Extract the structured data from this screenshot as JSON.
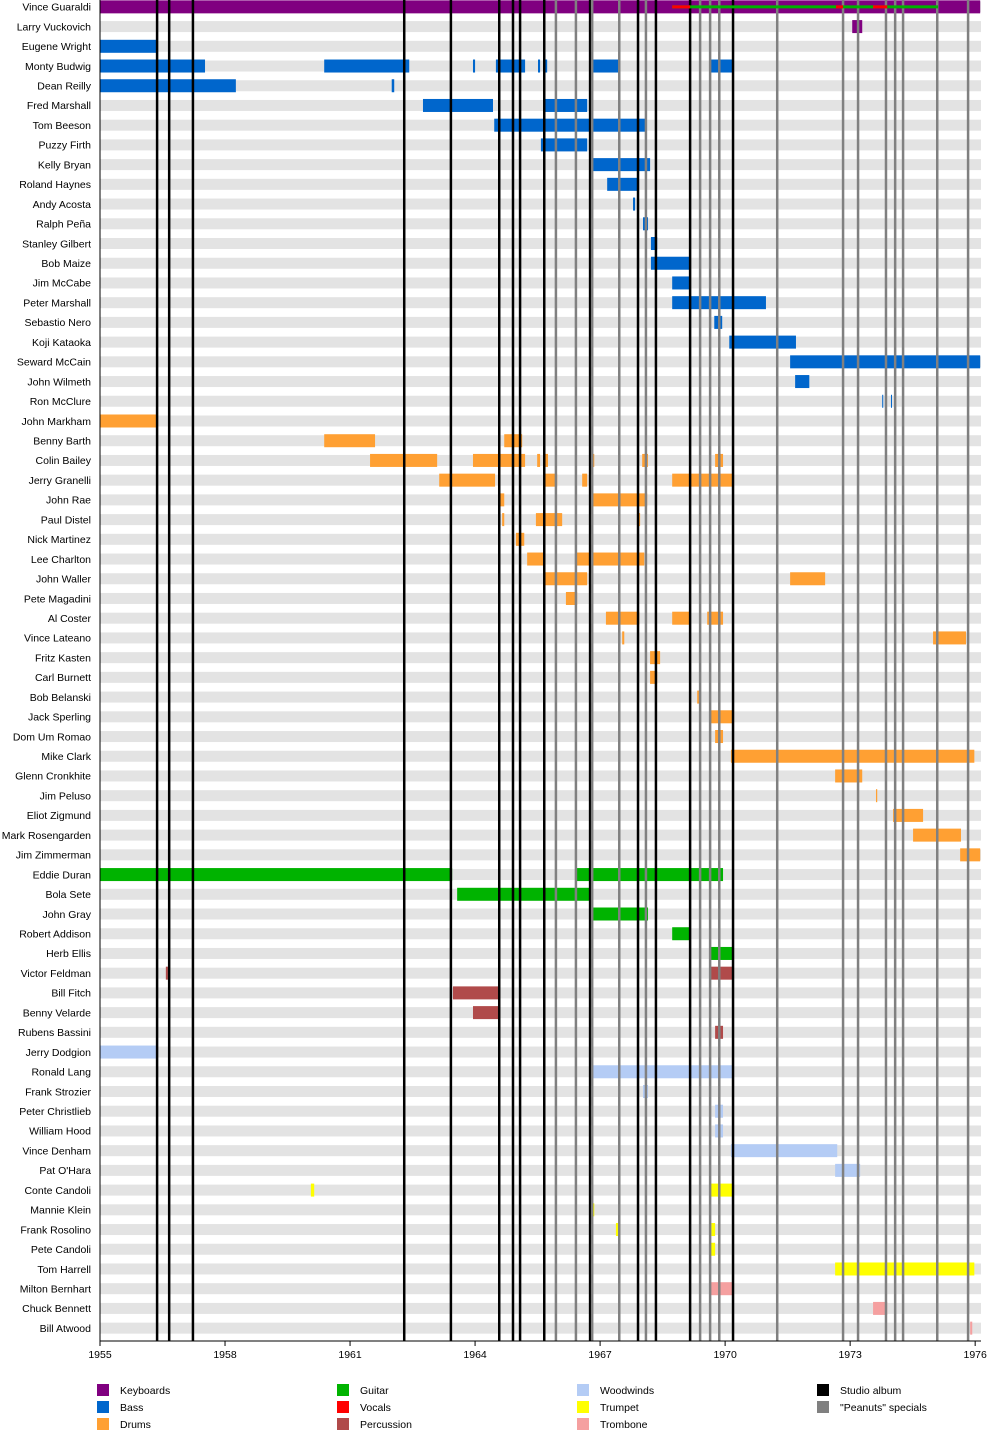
{
  "chart_data": {
    "type": "timeline",
    "xlim": [
      1955,
      1976.14
    ],
    "xticks": [
      1955,
      1958,
      1961,
      1964,
      1967,
      1970,
      1973,
      1976
    ],
    "roles": [
      {
        "name": "Keyboards",
        "color": "#800080"
      },
      {
        "name": "Bass",
        "color": "#0066cc"
      },
      {
        "name": "Drums",
        "color": "#ffa033"
      },
      {
        "name": "Guitar",
        "color": "#00b300"
      },
      {
        "name": "Vocals",
        "color": "#ff0000"
      },
      {
        "name": "Percussion",
        "color": "#b04a4a"
      },
      {
        "name": "Woodwinds",
        "color": "#b4ccf5"
      },
      {
        "name": "Trumpet",
        "color": "#ffff00"
      },
      {
        "name": "Trombone",
        "color": "#f5a0a0"
      }
    ],
    "events": [
      {
        "name": "Studio album",
        "color": "#000000",
        "dates": [
          1956.37,
          1956.66,
          1957.23,
          1962.3,
          1963.42,
          1964.58,
          1964.91,
          1965.08,
          1965.66,
          1966.76,
          1967.91,
          1968.34,
          1969.16,
          1970.19
        ]
      },
      {
        "name": "\"Peanuts\" specials",
        "color": "#808080",
        "dates": [
          1965.94,
          1966.42,
          1966.81,
          1967.46,
          1968.1,
          1969.4,
          1969.64,
          1969.86,
          1971.25,
          1972.83,
          1973.19,
          1973.86,
          1974.08,
          1974.27,
          1975.09,
          1975.83
        ]
      }
    ],
    "members": [
      {
        "name": "Vince Guaraldi",
        "periods": [
          {
            "role": "Keyboards",
            "start": 1955,
            "end": 1976.12
          },
          {
            "role": "Guitar",
            "start": 1968.73,
            "end": 1975.11,
            "thin": true
          },
          {
            "role": "Vocals",
            "start": 1968.73,
            "end": 1969.16,
            "thin": true
          },
          {
            "role": "Vocals",
            "start": 1972.66,
            "end": 1972.83,
            "thin": true
          },
          {
            "role": "Vocals",
            "start": 1973.55,
            "end": 1973.89,
            "thin": true
          }
        ]
      },
      {
        "name": "Larry Vuckovich",
        "periods": [
          {
            "role": "Keyboards",
            "start": 1973.05,
            "end": 1973.29
          }
        ]
      },
      {
        "name": "Eugene Wright",
        "periods": [
          {
            "role": "Bass",
            "start": 1955,
            "end": 1956.39
          }
        ]
      },
      {
        "name": "Monty Budwig",
        "periods": [
          {
            "role": "Bass",
            "start": 1955,
            "end": 1957.52
          },
          {
            "role": "Bass",
            "start": 1960.38,
            "end": 1962.42
          },
          {
            "role": "Bass",
            "start": 1963.95,
            "end": 1964.0
          },
          {
            "role": "Bass",
            "start": 1964.5,
            "end": 1965.2
          },
          {
            "role": "Bass",
            "start": 1965.51,
            "end": 1965.56
          },
          {
            "role": "Bass",
            "start": 1965.63,
            "end": 1965.73
          },
          {
            "role": "Bass",
            "start": 1966.76,
            "end": 1967.48
          },
          {
            "role": "Bass",
            "start": 1969.62,
            "end": 1970.19
          }
        ]
      },
      {
        "name": "Dean Reilly",
        "periods": [
          {
            "role": "Bass",
            "start": 1955,
            "end": 1958.26
          },
          {
            "role": "Bass",
            "start": 1962.0,
            "end": 1962.06
          }
        ]
      },
      {
        "name": "Fred Marshall",
        "periods": [
          {
            "role": "Bass",
            "start": 1962.75,
            "end": 1964.43
          },
          {
            "role": "Bass",
            "start": 1965.66,
            "end": 1966.69
          }
        ]
      },
      {
        "name": "Tom Beeson",
        "periods": [
          {
            "role": "Bass",
            "start": 1964.46,
            "end": 1968.1
          }
        ]
      },
      {
        "name": "Puzzy Firth",
        "periods": [
          {
            "role": "Bass",
            "start": 1965.58,
            "end": 1966.69
          }
        ]
      },
      {
        "name": "Kelly Bryan",
        "periods": [
          {
            "role": "Bass",
            "start": 1966.74,
            "end": 1968.2
          }
        ]
      },
      {
        "name": "Roland Haynes",
        "periods": [
          {
            "role": "Bass",
            "start": 1967.17,
            "end": 1967.91
          }
        ]
      },
      {
        "name": "Andy Acosta",
        "periods": [
          {
            "role": "Bass",
            "start": 1967.79,
            "end": 1967.84
          }
        ]
      },
      {
        "name": "Ralph Peña",
        "periods": [
          {
            "role": "Bass",
            "start": 1968.03,
            "end": 1968.15
          }
        ]
      },
      {
        "name": "Stanley Gilbert",
        "periods": [
          {
            "role": "Bass",
            "start": 1968.22,
            "end": 1968.37
          }
        ]
      },
      {
        "name": "Bob Maize",
        "periods": [
          {
            "role": "Bass",
            "start": 1968.22,
            "end": 1969.18
          }
        ]
      },
      {
        "name": "Jim McCabe",
        "periods": [
          {
            "role": "Bass",
            "start": 1968.73,
            "end": 1969.18
          }
        ]
      },
      {
        "name": "Peter Marshall",
        "periods": [
          {
            "role": "Bass",
            "start": 1968.73,
            "end": 1970.98
          }
        ]
      },
      {
        "name": "Sebastio Nero",
        "periods": [
          {
            "role": "Bass",
            "start": 1969.74,
            "end": 1969.93
          }
        ]
      },
      {
        "name": "Koji Kataoka",
        "periods": [
          {
            "role": "Bass",
            "start": 1970.1,
            "end": 1971.7
          }
        ]
      },
      {
        "name": "Seward McCain",
        "periods": [
          {
            "role": "Bass",
            "start": 1971.56,
            "end": 1976.12
          }
        ]
      },
      {
        "name": "John Wilmeth",
        "periods": [
          {
            "role": "Bass",
            "start": 1971.68,
            "end": 1972.02
          }
        ]
      },
      {
        "name": "Ron McClure",
        "periods": [
          {
            "role": "Bass",
            "start": 1973.77,
            "end": 1973.79
          },
          {
            "role": "Bass",
            "start": 1973.98,
            "end": 1974.0
          }
        ]
      },
      {
        "name": "John Markham",
        "periods": [
          {
            "role": "Drums",
            "start": 1955,
            "end": 1956.39
          }
        ]
      },
      {
        "name": "Benny Barth",
        "periods": [
          {
            "role": "Drums",
            "start": 1960.38,
            "end": 1961.6
          },
          {
            "role": "Drums",
            "start": 1964.7,
            "end": 1965.13
          },
          {
            "role": "Drums",
            "start": 1965.63,
            "end": 1965.68
          }
        ]
      },
      {
        "name": "Colin Bailey",
        "periods": [
          {
            "role": "Drums",
            "start": 1961.48,
            "end": 1963.09
          },
          {
            "role": "Drums",
            "start": 1963.95,
            "end": 1965.2
          },
          {
            "role": "Drums",
            "start": 1965.49,
            "end": 1965.56
          },
          {
            "role": "Drums",
            "start": 1965.63,
            "end": 1965.75
          },
          {
            "role": "Drums",
            "start": 1966.76,
            "end": 1966.86
          },
          {
            "role": "Drums",
            "start": 1968.01,
            "end": 1968.15
          },
          {
            "role": "Drums",
            "start": 1969.76,
            "end": 1969.95
          }
        ]
      },
      {
        "name": "Jerry Granelli",
        "periods": [
          {
            "role": "Drums",
            "start": 1963.14,
            "end": 1964.48
          },
          {
            "role": "Drums",
            "start": 1965.66,
            "end": 1965.97
          },
          {
            "role": "Drums",
            "start": 1966.57,
            "end": 1966.69
          },
          {
            "role": "Drums",
            "start": 1968.73,
            "end": 1970.19
          }
        ]
      },
      {
        "name": "John Rae",
        "periods": [
          {
            "role": "Drums",
            "start": 1964.6,
            "end": 1964.7
          },
          {
            "role": "Drums",
            "start": 1966.74,
            "end": 1968.13
          }
        ]
      },
      {
        "name": "Paul Distel",
        "periods": [
          {
            "role": "Drums",
            "start": 1964.65,
            "end": 1964.7
          },
          {
            "role": "Drums",
            "start": 1965.46,
            "end": 1966.09
          },
          {
            "role": "Drums",
            "start": 1967.91,
            "end": 1967.96
          }
        ]
      },
      {
        "name": "Nick Martinez",
        "periods": [
          {
            "role": "Drums",
            "start": 1964.98,
            "end": 1965.18
          }
        ]
      },
      {
        "name": "Lee Charlton",
        "periods": [
          {
            "role": "Drums",
            "start": 1965.25,
            "end": 1965.68
          },
          {
            "role": "Drums",
            "start": 1966.4,
            "end": 1968.06
          }
        ]
      },
      {
        "name": "John Waller",
        "periods": [
          {
            "role": "Drums",
            "start": 1965.66,
            "end": 1966.69
          },
          {
            "role": "Drums",
            "start": 1971.56,
            "end": 1972.4
          }
        ]
      },
      {
        "name": "Pete Magadini",
        "periods": [
          {
            "role": "Drums",
            "start": 1966.18,
            "end": 1966.45
          }
        ]
      },
      {
        "name": "Al Coster",
        "periods": [
          {
            "role": "Drums",
            "start": 1967.14,
            "end": 1967.94
          },
          {
            "role": "Drums",
            "start": 1968.73,
            "end": 1969.18
          },
          {
            "role": "Drums",
            "start": 1969.57,
            "end": 1969.95
          }
        ]
      },
      {
        "name": "Vince Lateano",
        "periods": [
          {
            "role": "Drums",
            "start": 1967.53,
            "end": 1967.58
          },
          {
            "role": "Drums",
            "start": 1974.99,
            "end": 1975.78
          }
        ]
      },
      {
        "name": "Fritz Kasten",
        "periods": [
          {
            "role": "Drums",
            "start": 1968.2,
            "end": 1968.44
          }
        ]
      },
      {
        "name": "Carl Burnett",
        "periods": [
          {
            "role": "Drums",
            "start": 1968.2,
            "end": 1968.37
          }
        ]
      },
      {
        "name": "Bob Belanski",
        "periods": [
          {
            "role": "Drums",
            "start": 1969.33,
            "end": 1969.38
          }
        ]
      },
      {
        "name": "Jack Sperling",
        "periods": [
          {
            "role": "Drums",
            "start": 1969.62,
            "end": 1970.19
          }
        ]
      },
      {
        "name": "Dom Um Romao",
        "periods": [
          {
            "role": "Drums",
            "start": 1969.76,
            "end": 1969.95
          }
        ]
      },
      {
        "name": "Mike Clark",
        "periods": [
          {
            "role": "Drums",
            "start": 1970.14,
            "end": 1975.98
          }
        ]
      },
      {
        "name": "Glenn Cronkhite",
        "periods": [
          {
            "role": "Drums",
            "start": 1972.64,
            "end": 1973.29
          }
        ]
      },
      {
        "name": "Jim Peluso",
        "periods": [
          {
            "role": "Drums",
            "start": 1973.62,
            "end": 1973.65
          }
        ]
      },
      {
        "name": "Eliot Zigmund",
        "periods": [
          {
            "role": "Drums",
            "start": 1974.03,
            "end": 1974.75
          }
        ]
      },
      {
        "name": "Mark Rosengarden",
        "periods": [
          {
            "role": "Drums",
            "start": 1974.51,
            "end": 1975.66
          }
        ]
      },
      {
        "name": "Jim Zimmerman",
        "periods": [
          {
            "role": "Drums",
            "start": 1975.64,
            "end": 1976.12
          }
        ]
      },
      {
        "name": "Eddie Duran",
        "periods": [
          {
            "role": "Guitar",
            "start": 1955,
            "end": 1963.45
          },
          {
            "role": "Guitar",
            "start": 1966.42,
            "end": 1969.95
          }
        ]
      },
      {
        "name": "Bola Sete",
        "periods": [
          {
            "role": "Guitar",
            "start": 1963.57,
            "end": 1966.78
          }
        ]
      },
      {
        "name": "John Gray",
        "periods": [
          {
            "role": "Guitar",
            "start": 1966.76,
            "end": 1968.15
          }
        ]
      },
      {
        "name": "Robert Addison",
        "periods": [
          {
            "role": "Guitar",
            "start": 1968.73,
            "end": 1969.18
          }
        ]
      },
      {
        "name": "Herb Ellis",
        "periods": [
          {
            "role": "Guitar",
            "start": 1969.62,
            "end": 1970.19
          }
        ]
      },
      {
        "name": "Victor Feldman",
        "periods": [
          {
            "role": "Percussion",
            "start": 1956.58,
            "end": 1956.63
          },
          {
            "role": "Percussion",
            "start": 1969.62,
            "end": 1970.19
          }
        ]
      },
      {
        "name": "Bill Fitch",
        "periods": [
          {
            "role": "Percussion",
            "start": 1963.47,
            "end": 1964.6
          }
        ]
      },
      {
        "name": "Benny Velarde",
        "periods": [
          {
            "role": "Percussion",
            "start": 1963.95,
            "end": 1964.6
          }
        ]
      },
      {
        "name": "Rubens Bassini",
        "periods": [
          {
            "role": "Percussion",
            "start": 1969.76,
            "end": 1969.95
          }
        ]
      },
      {
        "name": "Jerry Dodgion",
        "periods": [
          {
            "role": "Woodwinds",
            "start": 1955,
            "end": 1956.39
          }
        ]
      },
      {
        "name": "Ronald Lang",
        "periods": [
          {
            "role": "Woodwinds",
            "start": 1966.76,
            "end": 1970.19
          }
        ]
      },
      {
        "name": "Frank Strozier",
        "periods": [
          {
            "role": "Woodwinds",
            "start": 1968.03,
            "end": 1968.15
          }
        ]
      },
      {
        "name": "Peter Christlieb",
        "periods": [
          {
            "role": "Woodwinds",
            "start": 1969.76,
            "end": 1969.95
          }
        ]
      },
      {
        "name": "William Hood",
        "periods": [
          {
            "role": "Woodwinds",
            "start": 1969.76,
            "end": 1969.95
          }
        ]
      },
      {
        "name": "Vince Denham",
        "periods": [
          {
            "role": "Woodwinds",
            "start": 1970.14,
            "end": 1972.69
          }
        ]
      },
      {
        "name": "Pat O'Hara",
        "periods": [
          {
            "role": "Woodwinds",
            "start": 1972.64,
            "end": 1973.24
          }
        ]
      },
      {
        "name": "Conte Candoli",
        "periods": [
          {
            "role": "Trumpet",
            "start": 1960.06,
            "end": 1960.14
          },
          {
            "role": "Trumpet",
            "start": 1969.62,
            "end": 1970.19
          }
        ]
      },
      {
        "name": "Mannie Klein",
        "periods": [
          {
            "role": "Trumpet",
            "start": 1966.74,
            "end": 1966.86
          }
        ]
      },
      {
        "name": "Frank Rosolino",
        "periods": [
          {
            "role": "Trumpet",
            "start": 1967.38,
            "end": 1967.48
          },
          {
            "role": "Trumpet",
            "start": 1969.67,
            "end": 1969.76
          }
        ]
      },
      {
        "name": "Pete Candoli",
        "periods": [
          {
            "role": "Trumpet",
            "start": 1969.62,
            "end": 1969.76
          }
        ]
      },
      {
        "name": "Tom Harrell",
        "periods": [
          {
            "role": "Trumpet",
            "start": 1972.64,
            "end": 1975.98
          }
        ]
      },
      {
        "name": "Milton Bernhart",
        "periods": [
          {
            "role": "Trombone",
            "start": 1969.62,
            "end": 1970.19
          }
        ]
      },
      {
        "name": "Chuck Bennett",
        "periods": [
          {
            "role": "Trombone",
            "start": 1973.55,
            "end": 1973.89
          }
        ]
      },
      {
        "name": "Bill Atwood",
        "periods": [
          {
            "role": "Trombone",
            "start": 1975.88,
            "end": 1975.93
          }
        ]
      }
    ]
  }
}
